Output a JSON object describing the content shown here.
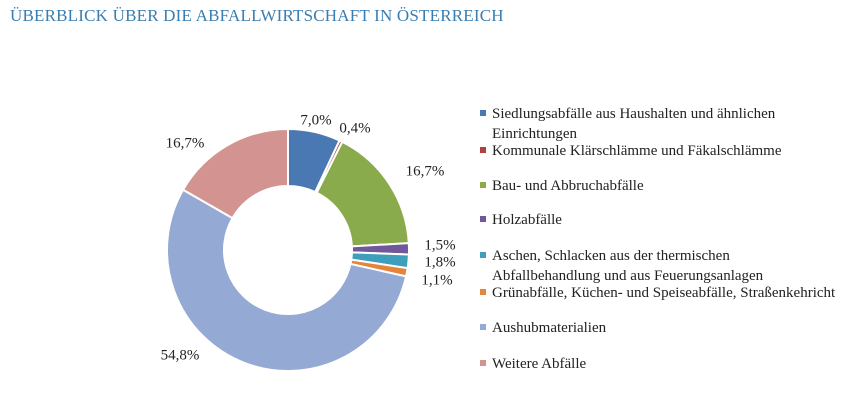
{
  "chart_data": {
    "type": "donut",
    "title": "ÜBERBLICK ÜBER DIE ABFALLWIRTSCHAFT IN ÖSTERREICH",
    "categories": [
      "Siedlungsabfälle aus Haushalten und ähnlichen Einrichtungen",
      "Kommunale Klärschlämme und Fäkalschlämme",
      "Bau- und Abbruchabfälle",
      "Holzabfälle",
      "Aschen, Schlacken aus der thermischen Abfallbehandlung und aus Feuerungsanlagen",
      "Grünabfälle, Küchen- und Speiseabfälle, Straßenkehricht",
      "Aushubmaterialien",
      "Weitere Abfälle"
    ],
    "values": [
      7.0,
      0.4,
      16.7,
      1.5,
      1.8,
      1.1,
      54.8,
      16.7
    ],
    "value_labels": [
      "7,0%",
      "0,4%",
      "16,7%",
      "1,5%",
      "1,8%",
      "1,1%",
      "54,8%",
      "16,7%"
    ],
    "colors": [
      "#4a78b2",
      "#b0413e",
      "#8aab4c",
      "#71589a",
      "#3d9fbb",
      "#e5853a",
      "#94a9d3",
      "#d29391"
    ],
    "legend": "right"
  }
}
